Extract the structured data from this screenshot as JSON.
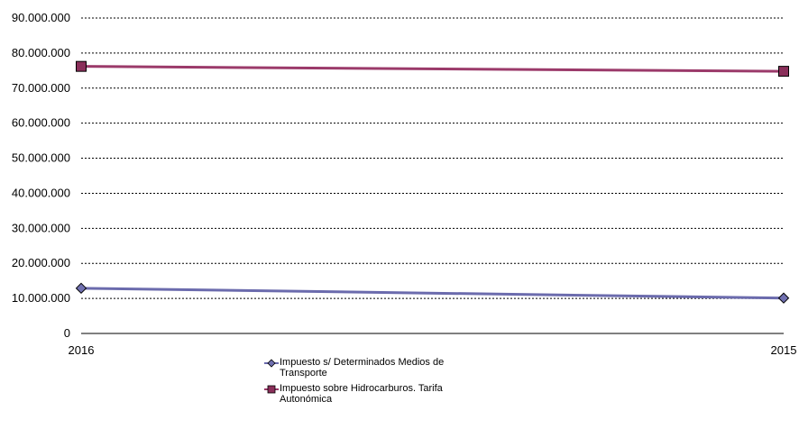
{
  "chart_data": {
    "type": "line",
    "title": "",
    "xlabel": "",
    "ylabel": "",
    "categories": [
      "2016",
      "2015"
    ],
    "ylim": [
      0,
      90000000
    ],
    "yticks": [
      0,
      10000000,
      20000000,
      30000000,
      40000000,
      50000000,
      60000000,
      70000000,
      80000000,
      90000000
    ],
    "ytick_labels": [
      "0",
      "10.000.000",
      "20.000.000",
      "30.000.000",
      "40.000.000",
      "50.000.000",
      "60.000.000",
      "70.000.000",
      "80.000.000",
      "90.000.000"
    ],
    "grid": "horizontal dotted",
    "legend_position": "bottom",
    "series": [
      {
        "name": "Impuesto s/ Determinados Medios de Transporte",
        "values": [
          12900000,
          10100000
        ],
        "color": "#6b6bad",
        "marker": "diamond",
        "marker_fill": "#7070b0"
      },
      {
        "name": "Impuesto sobre Hidrocarburos. Tarifa Autonómica",
        "values": [
          76200000,
          74800000
        ],
        "color": "#9b3a6a",
        "marker": "square",
        "marker_fill": "#8a2f5a"
      }
    ]
  }
}
